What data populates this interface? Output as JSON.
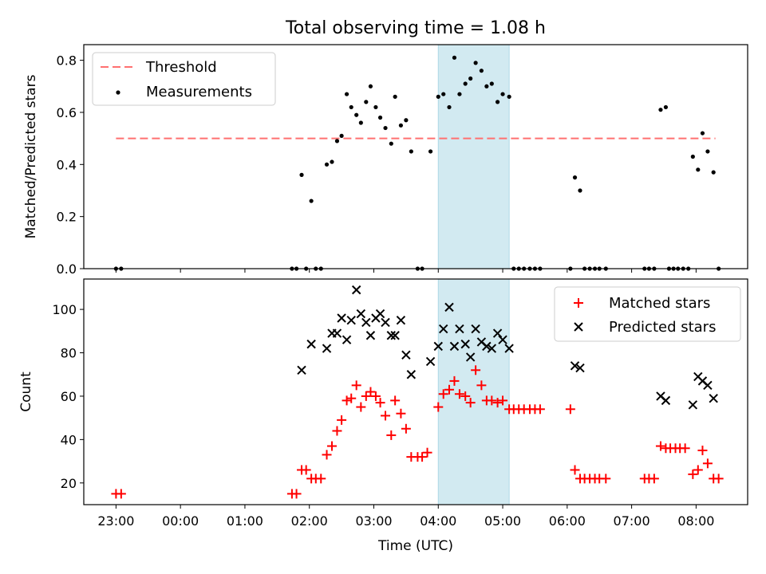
{
  "title": "Total observing time = 1.08 h",
  "colors": {
    "threshold": "#ff7070",
    "matched": "#ff0000",
    "predicted": "#000000",
    "measurement": "#000000",
    "shade": "#add8e6"
  },
  "chart_data": [
    {
      "type": "scatter",
      "panel": "top",
      "ylabel": "Matched/Predicted stars",
      "xlim": [
        -0.5,
        9.8
      ],
      "ylim": [
        0,
        0.86
      ],
      "x_unit": "hours since 23:00 UTC",
      "yticks": [
        "0.0",
        "0.2",
        "0.4",
        "0.6",
        "0.8"
      ],
      "ytick_values": [
        0,
        0.2,
        0.4,
        0.6,
        0.8
      ],
      "legend": {
        "placement": "top-left",
        "entries": [
          "Threshold",
          "Measurements"
        ]
      },
      "shaded_interval": [
        5.0,
        6.1
      ],
      "threshold": {
        "name": "Threshold",
        "value": 0.5,
        "x_range": [
          0,
          9.3
        ]
      },
      "series": [
        {
          "name": "Measurements",
          "points": [
            [
              0.0,
              0
            ],
            [
              0.08,
              0
            ],
            [
              2.73,
              0
            ],
            [
              2.8,
              0
            ],
            [
              2.88,
              0.36
            ],
            [
              2.95,
              0
            ],
            [
              3.03,
              0.26
            ],
            [
              3.1,
              0
            ],
            [
              3.18,
              0
            ],
            [
              3.27,
              0.4
            ],
            [
              3.35,
              0.41
            ],
            [
              3.43,
              0.49
            ],
            [
              3.5,
              0.51
            ],
            [
              3.58,
              0.67
            ],
            [
              3.65,
              0.62
            ],
            [
              3.73,
              0.59
            ],
            [
              3.8,
              0.56
            ],
            [
              3.88,
              0.64
            ],
            [
              3.95,
              0.7
            ],
            [
              4.03,
              0.62
            ],
            [
              4.1,
              0.58
            ],
            [
              4.18,
              0.54
            ],
            [
              4.27,
              0.48
            ],
            [
              4.33,
              0.66
            ],
            [
              4.42,
              0.55
            ],
            [
              4.5,
              0.57
            ],
            [
              4.58,
              0.45
            ],
            [
              4.68,
              0
            ],
            [
              4.75,
              0
            ],
            [
              4.88,
              0.45
            ],
            [
              5.0,
              0.66
            ],
            [
              5.08,
              0.67
            ],
            [
              5.17,
              0.62
            ],
            [
              5.25,
              0.81
            ],
            [
              5.33,
              0.67
            ],
            [
              5.42,
              0.71
            ],
            [
              5.5,
              0.73
            ],
            [
              5.58,
              0.79
            ],
            [
              5.67,
              0.76
            ],
            [
              5.75,
              0.7
            ],
            [
              5.83,
              0.71
            ],
            [
              5.92,
              0.64
            ],
            [
              6.0,
              0.67
            ],
            [
              6.1,
              0.66
            ],
            [
              6.17,
              0
            ],
            [
              6.25,
              0
            ],
            [
              6.33,
              0
            ],
            [
              6.42,
              0
            ],
            [
              6.5,
              0
            ],
            [
              6.58,
              0
            ],
            [
              7.05,
              0
            ],
            [
              7.12,
              0.35
            ],
            [
              7.2,
              0.3
            ],
            [
              7.27,
              0
            ],
            [
              7.35,
              0
            ],
            [
              7.43,
              0
            ],
            [
              7.5,
              0
            ],
            [
              7.6,
              0
            ],
            [
              8.2,
              0
            ],
            [
              8.27,
              0
            ],
            [
              8.35,
              0
            ],
            [
              8.45,
              0.61
            ],
            [
              8.53,
              0.62
            ],
            [
              8.58,
              0
            ],
            [
              8.65,
              0
            ],
            [
              8.72,
              0
            ],
            [
              8.8,
              0
            ],
            [
              8.88,
              0
            ],
            [
              8.95,
              0.43
            ],
            [
              9.03,
              0.38
            ],
            [
              9.1,
              0.52
            ],
            [
              9.18,
              0.45
            ],
            [
              9.27,
              0.37
            ],
            [
              9.35,
              0
            ]
          ]
        }
      ]
    },
    {
      "type": "scatter",
      "panel": "bottom",
      "xlabel": "Time (UTC)",
      "ylabel": "Count",
      "xlim": [
        -0.5,
        9.8
      ],
      "ylim": [
        10,
        114
      ],
      "x_unit": "hours since 23:00 UTC",
      "xticks": [
        "23:00",
        "00:00",
        "01:00",
        "02:00",
        "03:00",
        "04:00",
        "05:00",
        "06:00",
        "07:00",
        "08:00"
      ],
      "xtick_values": [
        0,
        1,
        2,
        3,
        4,
        5,
        6,
        7,
        8,
        9
      ],
      "yticks": [
        "20",
        "40",
        "60",
        "80",
        "100"
      ],
      "ytick_values": [
        20,
        40,
        60,
        80,
        100
      ],
      "legend": {
        "placement": "top-right",
        "entries": [
          "Matched stars",
          "Predicted stars"
        ]
      },
      "shaded_interval": [
        5.0,
        6.1
      ],
      "series": [
        {
          "name": "Matched stars",
          "marker": "plus",
          "points": [
            [
              0.0,
              15
            ],
            [
              0.08,
              15
            ],
            [
              2.73,
              15
            ],
            [
              2.8,
              15
            ],
            [
              2.88,
              26
            ],
            [
              2.95,
              26
            ],
            [
              3.03,
              22
            ],
            [
              3.1,
              22
            ],
            [
              3.18,
              22
            ],
            [
              3.27,
              33
            ],
            [
              3.35,
              37
            ],
            [
              3.43,
              44
            ],
            [
              3.5,
              49
            ],
            [
              3.58,
              58
            ],
            [
              3.65,
              59
            ],
            [
              3.73,
              65
            ],
            [
              3.8,
              55
            ],
            [
              3.88,
              60
            ],
            [
              3.95,
              62
            ],
            [
              4.03,
              60
            ],
            [
              4.1,
              57
            ],
            [
              4.18,
              51
            ],
            [
              4.27,
              42
            ],
            [
              4.33,
              58
            ],
            [
              4.42,
              52
            ],
            [
              4.5,
              45
            ],
            [
              4.58,
              32
            ],
            [
              4.68,
              32
            ],
            [
              4.75,
              32
            ],
            [
              4.83,
              34
            ],
            [
              5.0,
              55
            ],
            [
              5.08,
              61
            ],
            [
              5.17,
              63
            ],
            [
              5.25,
              67
            ],
            [
              5.33,
              61
            ],
            [
              5.42,
              60
            ],
            [
              5.5,
              57
            ],
            [
              5.58,
              72
            ],
            [
              5.67,
              65
            ],
            [
              5.75,
              58
            ],
            [
              5.83,
              58
            ],
            [
              5.92,
              57
            ],
            [
              6.0,
              58
            ],
            [
              6.1,
              54
            ],
            [
              6.17,
              54
            ],
            [
              6.25,
              54
            ],
            [
              6.33,
              54
            ],
            [
              6.42,
              54
            ],
            [
              6.5,
              54
            ],
            [
              6.58,
              54
            ],
            [
              7.05,
              54
            ],
            [
              7.12,
              26
            ],
            [
              7.2,
              22
            ],
            [
              7.27,
              22
            ],
            [
              7.35,
              22
            ],
            [
              7.43,
              22
            ],
            [
              7.5,
              22
            ],
            [
              7.6,
              22
            ],
            [
              8.2,
              22
            ],
            [
              8.27,
              22
            ],
            [
              8.35,
              22
            ],
            [
              8.45,
              37
            ],
            [
              8.53,
              36
            ],
            [
              8.6,
              36
            ],
            [
              8.68,
              36
            ],
            [
              8.75,
              36
            ],
            [
              8.83,
              36
            ],
            [
              8.95,
              24
            ],
            [
              9.03,
              26
            ],
            [
              9.1,
              35
            ],
            [
              9.18,
              29
            ],
            [
              9.27,
              22
            ],
            [
              9.35,
              22
            ]
          ]
        },
        {
          "name": "Predicted stars",
          "marker": "x",
          "points": [
            [
              2.88,
              72
            ],
            [
              3.03,
              84
            ],
            [
              3.27,
              82
            ],
            [
              3.35,
              89
            ],
            [
              3.43,
              89
            ],
            [
              3.5,
              96
            ],
            [
              3.58,
              86
            ],
            [
              3.65,
              95
            ],
            [
              3.73,
              109
            ],
            [
              3.8,
              98
            ],
            [
              3.88,
              94
            ],
            [
              3.95,
              88
            ],
            [
              4.03,
              96
            ],
            [
              4.1,
              98
            ],
            [
              4.18,
              94
            ],
            [
              4.27,
              88
            ],
            [
              4.33,
              88
            ],
            [
              4.42,
              95
            ],
            [
              4.5,
              79
            ],
            [
              4.58,
              70
            ],
            [
              4.88,
              76
            ],
            [
              5.0,
              83
            ],
            [
              5.08,
              91
            ],
            [
              5.17,
              101
            ],
            [
              5.25,
              83
            ],
            [
              5.33,
              91
            ],
            [
              5.42,
              84
            ],
            [
              5.5,
              78
            ],
            [
              5.58,
              91
            ],
            [
              5.67,
              85
            ],
            [
              5.75,
              83
            ],
            [
              5.83,
              82
            ],
            [
              5.92,
              89
            ],
            [
              6.0,
              86
            ],
            [
              6.1,
              82
            ],
            [
              7.12,
              74
            ],
            [
              7.2,
              73
            ],
            [
              8.45,
              60
            ],
            [
              8.53,
              58
            ],
            [
              8.95,
              56
            ],
            [
              9.03,
              69
            ],
            [
              9.1,
              67
            ],
            [
              9.18,
              65
            ],
            [
              9.27,
              59
            ]
          ]
        }
      ]
    }
  ]
}
